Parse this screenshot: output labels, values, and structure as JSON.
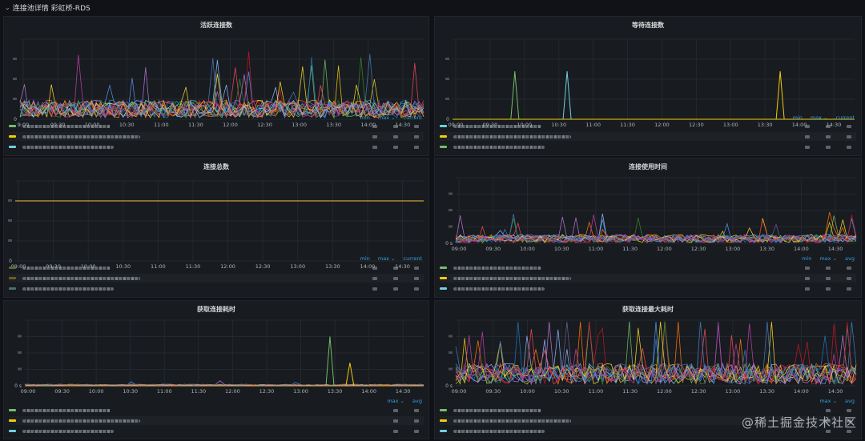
{
  "header": {
    "chevron": "⌄",
    "title": "连接池详情 彩虹桥-RDS"
  },
  "watermark": "@稀土掘金技术社区",
  "x_ticks_hourly": [
    "9:00",
    "09:30",
    "10:00",
    "10:30",
    "11:00",
    "11:30",
    "12:00",
    "12:30",
    "13:00",
    "13:30",
    "14:00",
    "14:30"
  ],
  "x_ticks_a": [
    "09:00",
    "09:30",
    "10:00",
    "10:30",
    "11:00",
    "11:30",
    "12:00",
    "12:30",
    "13:00",
    "13:30",
    "14:00",
    "14:30"
  ],
  "x_ticks_b": [
    "09:00",
    "09:30",
    "10:00",
    "10:30",
    "11:00",
    "11:30",
    "12:00",
    "12:30",
    "13:00",
    "13:30",
    "14:00",
    "14:30"
  ],
  "series_colors": [
    "#73bf69",
    "#f2cc0c",
    "#8ab8ff",
    "#ff780a",
    "#f2495c",
    "#5794f2",
    "#b877d9",
    "#705da0",
    "#37872d",
    "#fade2a",
    "#447ebc",
    "#c4162a",
    "#1f78c1",
    "#ba43a9",
    "#6ed0e0",
    "#ef843c",
    "#e24d42",
    "#1f60c4",
    "#e0f9d7",
    "#cca300"
  ],
  "panels": {
    "p1": {
      "title": "活跃连接数",
      "legend_cols": [
        "min",
        "max ⌄",
        "current"
      ],
      "legend_colors": [
        "#73bf69",
        "#f2cc0c",
        "#6ed0e0"
      ],
      "y_ticks": [
        "0"
      ]
    },
    "p2": {
      "title": "等待连接数",
      "legend_cols": [
        "min",
        "max ⌄",
        "current"
      ],
      "legend_colors": [
        "#6ed0e0",
        "#f2cc0c",
        "#73bf69"
      ],
      "y_ticks": [
        "0"
      ]
    },
    "p3": {
      "title": "连接总数",
      "legend_cols": [
        "min",
        "max ⌄",
        "current"
      ],
      "legend_colors": [
        "#5a6b3a",
        "#705a2a",
        "#4c6f7a"
      ],
      "y_ticks": [
        "0"
      ]
    },
    "p4": {
      "title": "连接使用时间",
      "legend_cols": [
        "min",
        "max ⌄",
        "avg"
      ],
      "legend_colors": [
        "#73bf69",
        "#f2cc0c",
        "#6ed0e0"
      ],
      "y_ticks": [
        "0 s"
      ]
    },
    "p5": {
      "title": "获取连接耗时",
      "legend_cols": [
        "max ⌄",
        "avg"
      ],
      "legend_colors": [
        "#73bf69",
        "#f2cc0c",
        "#6ed0e0"
      ],
      "y_ticks": [
        "0 s"
      ]
    },
    "p6": {
      "title": "获取连接最大耗时",
      "legend_cols": [
        "max ⌄",
        "avg"
      ],
      "legend_colors": [
        "#73bf69",
        "#f2cc0c",
        "#6ed0e0"
      ],
      "y_ticks": [
        "0 s"
      ]
    }
  }
}
